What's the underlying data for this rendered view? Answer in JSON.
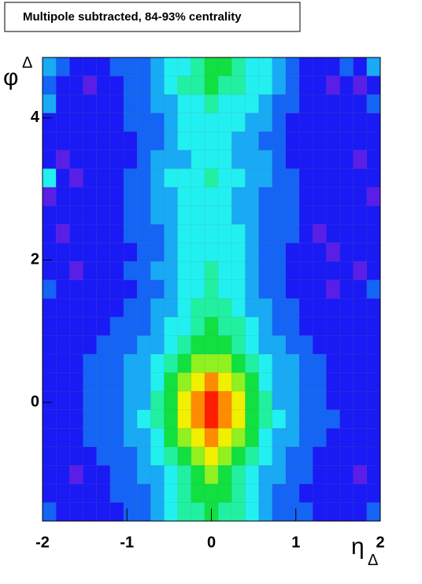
{
  "chart_data": {
    "type": "heatmap",
    "title": "Multipole subtracted, 84-93% centrality",
    "xlabel": {
      "symbol": "η",
      "subscript": "Δ"
    },
    "ylabel": {
      "symbol": "φ",
      "subscript": "Δ"
    },
    "xlim": [
      -2,
      2
    ],
    "ylim": [
      -1.67,
      4.85
    ],
    "xticks": [
      -2,
      -1,
      0,
      1,
      2
    ],
    "yticks": [
      0,
      2,
      4
    ],
    "zlim": [
      0,
      10
    ],
    "palette": [
      "#5a1ee6",
      "#1a1af5",
      "#1464f5",
      "#18aaf5",
      "#22f0f0",
      "#20f0a0",
      "#10e040",
      "#90f020",
      "#f0f000",
      "#ff8c00",
      "#ff1e00"
    ],
    "values": [
      [
        3,
        2,
        1,
        1,
        1,
        2,
        2,
        2,
        3,
        4,
        4,
        5,
        6,
        6,
        5,
        4,
        4,
        3,
        2,
        1,
        1,
        1,
        2,
        1,
        3
      ],
      [
        2,
        1,
        1,
        0,
        1,
        1,
        2,
        2,
        3,
        4,
        5,
        5,
        6,
        5,
        5,
        4,
        4,
        3,
        2,
        1,
        1,
        0,
        1,
        0,
        1
      ],
      [
        3,
        1,
        1,
        1,
        1,
        1,
        2,
        2,
        3,
        3,
        4,
        4,
        5,
        4,
        4,
        4,
        3,
        2,
        2,
        1,
        1,
        1,
        1,
        1,
        2
      ],
      [
        1,
        1,
        1,
        1,
        1,
        1,
        2,
        2,
        2,
        3,
        4,
        4,
        4,
        4,
        4,
        3,
        3,
        2,
        1,
        1,
        1,
        1,
        1,
        1,
        1
      ],
      [
        1,
        1,
        1,
        1,
        1,
        1,
        1,
        2,
        2,
        3,
        4,
        4,
        4,
        4,
        3,
        3,
        2,
        2,
        1,
        1,
        1,
        1,
        1,
        1,
        1
      ],
      [
        1,
        0,
        1,
        1,
        1,
        1,
        1,
        2,
        3,
        3,
        3,
        4,
        4,
        4,
        3,
        3,
        3,
        2,
        1,
        1,
        1,
        1,
        1,
        0,
        1
      ],
      [
        4,
        1,
        0,
        1,
        1,
        1,
        2,
        2,
        3,
        4,
        4,
        4,
        5,
        4,
        4,
        3,
        3,
        2,
        2,
        1,
        1,
        1,
        1,
        1,
        1
      ],
      [
        0,
        1,
        1,
        1,
        1,
        1,
        2,
        2,
        3,
        3,
        4,
        4,
        4,
        4,
        3,
        3,
        2,
        2,
        2,
        1,
        1,
        1,
        1,
        1,
        0
      ],
      [
        1,
        1,
        1,
        1,
        1,
        1,
        2,
        2,
        3,
        3,
        4,
        4,
        4,
        4,
        3,
        3,
        2,
        2,
        2,
        1,
        1,
        1,
        1,
        1,
        1
      ],
      [
        1,
        0,
        1,
        1,
        1,
        1,
        2,
        2,
        2,
        3,
        4,
        4,
        4,
        4,
        4,
        3,
        2,
        2,
        2,
        1,
        0,
        1,
        1,
        1,
        1
      ],
      [
        1,
        1,
        1,
        1,
        1,
        1,
        1,
        2,
        2,
        3,
        4,
        4,
        4,
        4,
        4,
        3,
        2,
        2,
        1,
        1,
        1,
        0,
        1,
        1,
        1
      ],
      [
        1,
        1,
        0,
        1,
        1,
        1,
        2,
        2,
        3,
        3,
        4,
        4,
        5,
        4,
        4,
        3,
        2,
        2,
        1,
        1,
        1,
        1,
        1,
        0,
        1
      ],
      [
        2,
        1,
        1,
        1,
        1,
        1,
        1,
        2,
        2,
        3,
        4,
        4,
        5,
        4,
        4,
        3,
        2,
        2,
        1,
        1,
        1,
        0,
        1,
        1,
        2
      ],
      [
        1,
        1,
        1,
        1,
        1,
        1,
        2,
        2,
        3,
        3,
        4,
        5,
        5,
        5,
        4,
        3,
        3,
        2,
        2,
        1,
        1,
        1,
        1,
        1,
        1
      ],
      [
        1,
        1,
        1,
        1,
        1,
        2,
        2,
        2,
        3,
        4,
        4,
        5,
        6,
        5,
        5,
        4,
        3,
        2,
        2,
        1,
        1,
        1,
        1,
        1,
        1
      ],
      [
        1,
        1,
        1,
        1,
        2,
        2,
        2,
        3,
        3,
        4,
        5,
        6,
        6,
        6,
        5,
        4,
        3,
        3,
        2,
        2,
        1,
        1,
        1,
        1,
        1
      ],
      [
        1,
        1,
        1,
        2,
        2,
        2,
        3,
        3,
        4,
        5,
        6,
        7,
        7,
        7,
        6,
        5,
        4,
        3,
        3,
        2,
        2,
        1,
        1,
        1,
        1
      ],
      [
        1,
        1,
        1,
        2,
        2,
        2,
        3,
        3,
        4,
        6,
        7,
        8,
        9,
        8,
        7,
        6,
        4,
        3,
        3,
        2,
        2,
        1,
        1,
        1,
        1
      ],
      [
        1,
        1,
        1,
        2,
        2,
        2,
        3,
        3,
        5,
        6,
        8,
        9,
        10,
        9,
        8,
        6,
        5,
        3,
        3,
        2,
        2,
        1,
        1,
        1,
        1
      ],
      [
        1,
        1,
        1,
        2,
        2,
        2,
        3,
        4,
        5,
        6,
        8,
        9,
        10,
        9,
        8,
        6,
        5,
        4,
        3,
        2,
        2,
        2,
        1,
        1,
        1
      ],
      [
        1,
        1,
        1,
        2,
        2,
        2,
        3,
        3,
        4,
        6,
        7,
        8,
        9,
        8,
        7,
        6,
        4,
        3,
        3,
        2,
        2,
        1,
        1,
        1,
        1
      ],
      [
        1,
        1,
        1,
        1,
        2,
        2,
        2,
        3,
        4,
        5,
        6,
        7,
        8,
        7,
        6,
        5,
        4,
        3,
        2,
        2,
        1,
        1,
        1,
        1,
        1
      ],
      [
        1,
        1,
        0,
        1,
        1,
        2,
        2,
        3,
        3,
        4,
        5,
        6,
        7,
        6,
        5,
        4,
        3,
        3,
        2,
        2,
        1,
        1,
        1,
        0,
        1
      ],
      [
        1,
        1,
        1,
        1,
        1,
        2,
        2,
        2,
        3,
        4,
        5,
        6,
        6,
        6,
        5,
        4,
        3,
        2,
        2,
        1,
        1,
        1,
        1,
        1,
        1
      ],
      [
        2,
        1,
        1,
        1,
        1,
        1,
        2,
        2,
        3,
        4,
        5,
        5,
        6,
        5,
        5,
        4,
        3,
        2,
        2,
        2,
        1,
        1,
        1,
        1,
        2
      ]
    ]
  }
}
